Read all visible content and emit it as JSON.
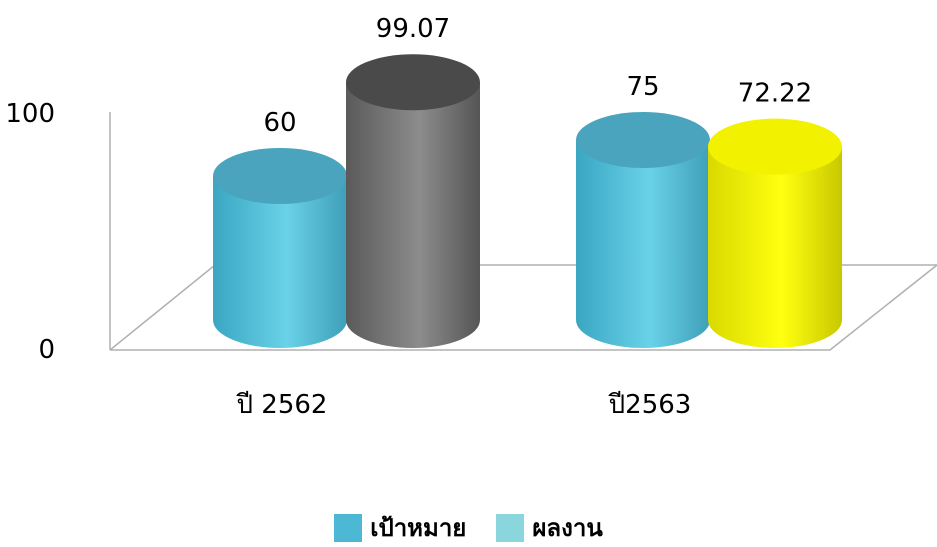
{
  "chart_data": {
    "type": "bar",
    "style": "3d-cylinder",
    "categories": [
      "ปี 2562",
      "ปี2563"
    ],
    "series": [
      {
        "name": "เป้าหมาย",
        "values": [
          60,
          75
        ]
      },
      {
        "name": "ผลงาน",
        "values": [
          99.07,
          72.22
        ]
      }
    ],
    "bar_colors": [
      [
        "#5bc6de",
        "#808080"
      ],
      [
        "#5bc6de",
        "#f4f400"
      ]
    ],
    "legend_colors": [
      "#4db8d4",
      "#8ad6dc"
    ],
    "data_labels": [
      [
        "60",
        "99.07"
      ],
      [
        "75",
        "72.22"
      ]
    ],
    "y_ticks": [
      "0",
      "100"
    ],
    "ylim": [
      0,
      100
    ],
    "grid": false,
    "legend_position": "bottom"
  }
}
